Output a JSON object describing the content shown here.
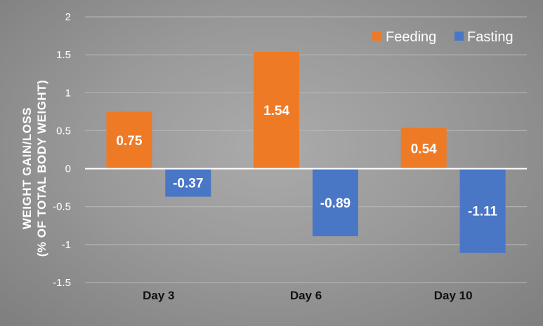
{
  "chart_data": {
    "type": "bar",
    "categories": [
      "Day 3",
      "Day 6",
      "Day 10"
    ],
    "series": [
      {
        "name": "Feeding",
        "values": [
          0.75,
          1.54,
          0.54
        ],
        "color": "#ef7a25"
      },
      {
        "name": "Fasting",
        "values": [
          -0.37,
          -0.89,
          -1.11
        ],
        "color": "#4a76c6"
      }
    ],
    "data_labels": {
      "Feeding": [
        "0.75",
        "1.54",
        "0.54"
      ],
      "Fasting": [
        "-0.37",
        "-0.89",
        "-1.11"
      ]
    },
    "ylabel_line1": "WEIGHT GAIN/LOSS",
    "ylabel_line2": "(% OF TOTAL BODY WEIGHT)",
    "ylim": [
      -1.5,
      2
    ],
    "yticks": [
      2,
      1.5,
      1,
      0.5,
      0,
      -0.5,
      -1,
      -1.5
    ],
    "ytick_labels": [
      "2",
      "1.5",
      "1",
      "0.5",
      "0",
      "-0.5",
      "-1",
      "-1.5"
    ],
    "grid": true,
    "legend_position": "top-right"
  }
}
